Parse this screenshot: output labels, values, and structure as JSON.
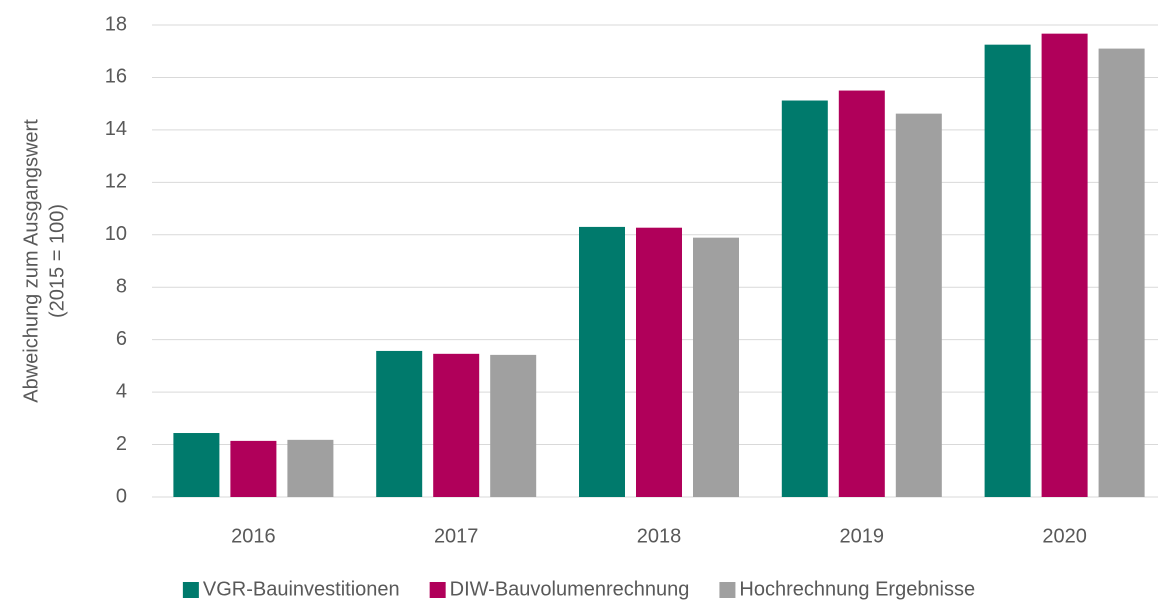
{
  "chart_data": {
    "type": "bar",
    "y_label": "Abweichung zum Ausgangswert (2015 = 100)",
    "y_label_lines": [
      "Abweichung zum Ausgangswert",
      "(2015 = 100)"
    ],
    "categories": [
      "2016",
      "2017",
      "2018",
      "2019",
      "2020"
    ],
    "series": [
      {
        "name": "VGR-Bauinvestitionen",
        "color": "#007a6c",
        "values": [
          2.44,
          5.57,
          10.3,
          15.12,
          17.25
        ]
      },
      {
        "name": "DIW-Bauvolumenrechnung",
        "color": "#b0005a",
        "values": [
          2.14,
          5.46,
          10.27,
          15.5,
          17.67
        ]
      },
      {
        "name": "Hochrechnung Ergebnisse",
        "color": "#a0a0a0",
        "values": [
          2.18,
          5.42,
          9.89,
          14.62,
          17.1
        ]
      }
    ],
    "ylim": [
      0,
      18
    ],
    "yticks": [
      0,
      2,
      4,
      6,
      8,
      10,
      12,
      14,
      16,
      18
    ],
    "grid": true,
    "legend": "bottom"
  }
}
